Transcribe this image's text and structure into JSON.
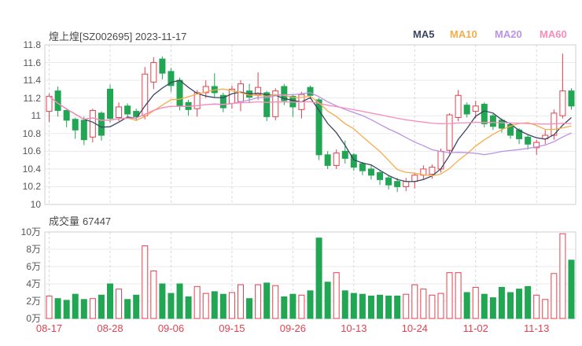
{
  "header": {
    "title": "煌上煌[SZ002695] 2023-11-17",
    "legend": [
      {
        "label": "MA5",
        "color": "#3a4563"
      },
      {
        "label": "MA10",
        "color": "#f5ad4c"
      },
      {
        "label": "MA20",
        "color": "#bb92e8"
      },
      {
        "label": "MA60",
        "color": "#f88cba"
      }
    ]
  },
  "volume_header": {
    "label": "成交量",
    "value": "67447"
  },
  "colors": {
    "up": "#e2424f",
    "down": "#21a653",
    "grid": "#e9e9e9",
    "grid_dash": "#d8d8d8",
    "border": "#cfcfcf",
    "axis_text": "#555555",
    "date_text": "#e2424f",
    "title_text": "#4a4a4a",
    "background": "#ffffff"
  },
  "chart_data": {
    "type": "candlestick+volume",
    "title": "煌上煌[SZ002695] 2023-11-17",
    "legend_entries": [
      "MA5",
      "MA10",
      "MA20",
      "MA60"
    ],
    "ma_windows": [
      5,
      10,
      20,
      60
    ],
    "grid": true,
    "price_axis": {
      "min": 10,
      "max": 11.8,
      "step": 0.2,
      "labels": [
        "11.8",
        "11.6",
        "11.4",
        "11.2",
        "11",
        "10.8",
        "10.6",
        "10.4",
        "10.2",
        "10"
      ]
    },
    "volume_axis": {
      "max_wan": 10,
      "labels": [
        "10万",
        "8万",
        "6万",
        "4万",
        "2万",
        "0万"
      ]
    },
    "x_ticks": [
      {
        "index": 0,
        "label": "08-17"
      },
      {
        "index": 7,
        "label": "08-28"
      },
      {
        "index": 14,
        "label": "09-06"
      },
      {
        "index": 21,
        "label": "09-15"
      },
      {
        "index": 28,
        "label": "09-26"
      },
      {
        "index": 35,
        "label": "10-13"
      },
      {
        "index": 42,
        "label": "10-24"
      },
      {
        "index": 49,
        "label": "11-02"
      },
      {
        "index": 56,
        "label": "11-13"
      }
    ],
    "candles": {
      "open": [
        11.05,
        11.28,
        11.06,
        10.96,
        10.95,
        10.76,
        11.03,
        11.3,
        10.98,
        11.11,
        11.05,
        11.0,
        11.38,
        11.64,
        11.5,
        11.4,
        11.15,
        11.08,
        11.26,
        11.33,
        11.23,
        11.14,
        11.16,
        11.28,
        11.24,
        11.26,
        10.99,
        11.33,
        11.22,
        11.07,
        11.32,
        11.18,
        10.56,
        10.44,
        10.6,
        10.56,
        10.46,
        10.4,
        10.36,
        10.3,
        10.26,
        10.2,
        10.26,
        10.33,
        10.34,
        10.4,
        10.61,
        10.98,
        11.12,
        11.05,
        11.13,
        11.0,
        10.95,
        10.9,
        10.84,
        10.76,
        10.64,
        10.74,
        10.78,
        11.0,
        11.28
      ],
      "close": [
        11.22,
        11.06,
        10.95,
        10.84,
        10.73,
        11.06,
        10.78,
        10.97,
        11.1,
        11.02,
        10.99,
        11.47,
        11.6,
        11.48,
        11.34,
        11.11,
        11.07,
        11.26,
        11.33,
        11.26,
        11.09,
        11.3,
        11.36,
        11.21,
        11.32,
        10.99,
        11.28,
        11.17,
        11.1,
        11.24,
        11.23,
        10.56,
        10.44,
        10.58,
        10.52,
        10.42,
        10.38,
        10.33,
        10.28,
        10.22,
        10.2,
        10.26,
        10.33,
        10.4,
        10.42,
        10.6,
        11.01,
        11.23,
        11.02,
        11.11,
        10.91,
        10.88,
        10.86,
        10.78,
        10.74,
        10.68,
        10.7,
        10.78,
        11.03,
        11.28,
        11.11
      ],
      "low": [
        10.93,
        10.99,
        10.87,
        10.74,
        10.67,
        10.7,
        10.72,
        10.92,
        10.94,
        10.97,
        10.94,
        10.96,
        11.3,
        11.41,
        11.27,
        11.06,
        11.0,
        10.99,
        11.2,
        11.21,
        11.04,
        11.08,
        11.05,
        11.15,
        11.18,
        10.94,
        10.95,
        11.12,
        10.99,
        10.97,
        11.19,
        10.5,
        10.4,
        10.4,
        10.46,
        10.38,
        10.33,
        10.28,
        10.22,
        10.17,
        10.14,
        10.15,
        10.18,
        10.28,
        10.29,
        10.36,
        10.57,
        10.94,
        10.98,
        10.97,
        10.87,
        10.84,
        10.81,
        10.74,
        10.68,
        10.62,
        10.56,
        10.68,
        10.73,
        10.97,
        11.07
      ],
      "high": [
        11.25,
        11.33,
        11.08,
        10.98,
        10.99,
        11.08,
        11.05,
        11.35,
        11.15,
        11.14,
        11.08,
        11.55,
        11.66,
        11.67,
        11.54,
        11.43,
        11.18,
        11.29,
        11.4,
        11.48,
        11.26,
        11.34,
        11.4,
        11.36,
        11.49,
        11.28,
        11.31,
        11.36,
        11.24,
        11.27,
        11.34,
        11.2,
        10.6,
        10.62,
        10.72,
        10.58,
        10.48,
        10.44,
        10.38,
        10.33,
        10.3,
        10.3,
        10.36,
        10.44,
        10.45,
        10.63,
        11.03,
        11.29,
        11.15,
        11.17,
        11.15,
        11.02,
        10.97,
        10.92,
        10.86,
        10.78,
        10.73,
        10.84,
        11.07,
        11.7,
        11.31
      ],
      "volume_wan": [
        2.6,
        2.3,
        2.1,
        2.8,
        2.2,
        2.3,
        2.7,
        4.0,
        3.4,
        2.2,
        2.7,
        8.4,
        5.5,
        4.0,
        2.9,
        4.0,
        2.5,
        3.7,
        2.9,
        3.1,
        2.8,
        3.0,
        3.9,
        2.3,
        3.9,
        4.1,
        3.8,
        2.5,
        2.8,
        2.7,
        3.2,
        9.3,
        4.2,
        5.3,
        3.2,
        2.9,
        2.8,
        2.6,
        2.7,
        2.6,
        2.6,
        2.8,
        3.9,
        3.4,
        2.7,
        2.9,
        5.3,
        5.3,
        3.0,
        3.6,
        2.8,
        2.4,
        3.6,
        3.0,
        3.4,
        3.7,
        2.7,
        2.2,
        5.2,
        9.8,
        6.7447
      ]
    }
  }
}
